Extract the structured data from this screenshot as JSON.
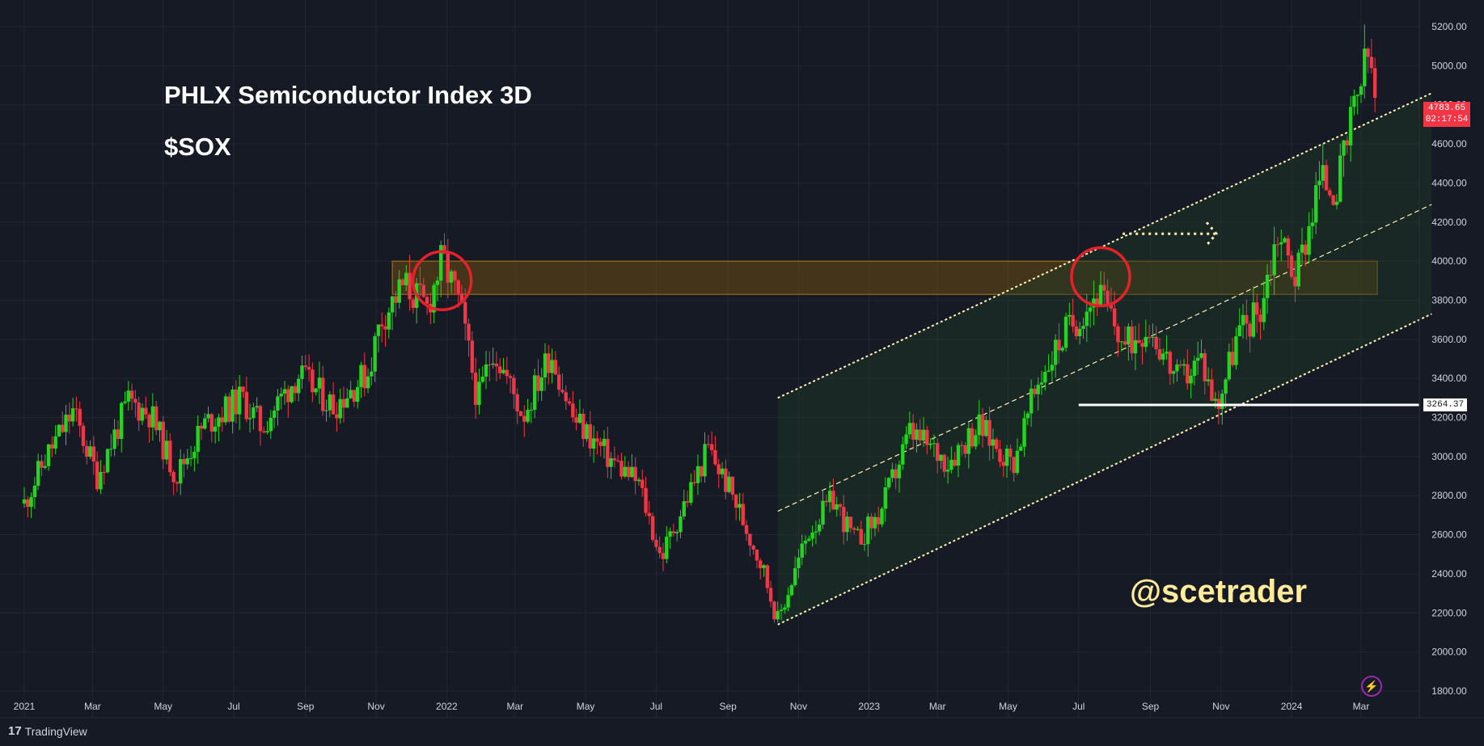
{
  "header": {
    "title": "PHLX Semiconductor Index 3D",
    "ticker": "$SOX",
    "watermark": "@scetrader"
  },
  "branding": {
    "logo_mark": "17",
    "logo_text": "TradingView"
  },
  "badges": {
    "last_price": "4783.65",
    "countdown": "02:17:54",
    "support_level": "3264.37"
  },
  "icons": {
    "flash": "lightning-icon"
  },
  "colors": {
    "background": "#161a25",
    "up": "#22d61f",
    "down": "#f23645",
    "grid": "#232733",
    "channel_line": "#fff2b3",
    "channel_fill": "#1f3a26",
    "resistance_zone": "#6b4a10",
    "circle": "#e8202a"
  },
  "chart_data": {
    "type": "candlestick",
    "title": "PHLX Semiconductor Index 3D",
    "ylim": [
      1700,
      5260
    ],
    "y_ticks": [
      1800,
      2000,
      2200,
      2400,
      2600,
      2800,
      3000,
      3200,
      3400,
      3600,
      3800,
      4000,
      4200,
      4400,
      4600,
      4800,
      5000,
      5200
    ],
    "y_tick_labels": [
      "1800.00",
      "2000.00",
      "2200.00",
      "2400.00",
      "2600.00",
      "2800.00",
      "3000.00",
      "3200.00",
      "3400.00",
      "3600.00",
      "3800.00",
      "4000.00",
      "4200.00",
      "4400.00",
      "4600.00",
      "4800.00",
      "5000.00",
      "5200.00"
    ],
    "x_tick_labels": [
      "2021",
      "Mar",
      "May",
      "Jul",
      "Sep",
      "Nov",
      "2022",
      "Mar",
      "May",
      "Jul",
      "Sep",
      "Nov",
      "2023",
      "Mar",
      "May",
      "Jul",
      "Sep",
      "Nov",
      "2024",
      "Mar"
    ],
    "x_tick_dates": [
      "2021-01-01",
      "2021-03-01",
      "2021-05-01",
      "2021-07-01",
      "2021-09-01",
      "2021-11-01",
      "2022-01-01",
      "2022-03-01",
      "2022-05-01",
      "2022-07-01",
      "2022-09-01",
      "2022-11-01",
      "2023-01-01",
      "2023-03-01",
      "2023-05-01",
      "2023-07-01",
      "2023-09-01",
      "2023-11-01",
      "2024-01-01",
      "2024-03-01"
    ],
    "price_path": [
      {
        "date": "2021-01-01",
        "close": 2760
      },
      {
        "date": "2021-01-20",
        "close": 3000
      },
      {
        "date": "2021-02-12",
        "close": 3230
      },
      {
        "date": "2021-03-05",
        "close": 2900
      },
      {
        "date": "2021-04-01",
        "close": 3280
      },
      {
        "date": "2021-04-20",
        "close": 3220
      },
      {
        "date": "2021-05-12",
        "close": 2900
      },
      {
        "date": "2021-06-05",
        "close": 3160
      },
      {
        "date": "2021-07-08",
        "close": 3300
      },
      {
        "date": "2021-07-25",
        "close": 3150
      },
      {
        "date": "2021-08-25",
        "close": 3420
      },
      {
        "date": "2021-09-25",
        "close": 3260
      },
      {
        "date": "2021-10-25",
        "close": 3430
      },
      {
        "date": "2021-11-05",
        "close": 3700
      },
      {
        "date": "2021-11-25",
        "close": 3880
      },
      {
        "date": "2021-12-15",
        "close": 3760
      },
      {
        "date": "2021-12-28",
        "close": 4010
      },
      {
        "date": "2022-01-12",
        "close": 3780
      },
      {
        "date": "2022-01-28",
        "close": 3280
      },
      {
        "date": "2022-02-10",
        "close": 3560
      },
      {
        "date": "2022-03-08",
        "close": 3210
      },
      {
        "date": "2022-04-01",
        "close": 3540
      },
      {
        "date": "2022-04-20",
        "close": 3200
      },
      {
        "date": "2022-05-20",
        "close": 3000
      },
      {
        "date": "2022-06-16",
        "close": 2860
      },
      {
        "date": "2022-07-05",
        "close": 2480
      },
      {
        "date": "2022-08-15",
        "close": 3040
      },
      {
        "date": "2022-09-05",
        "close": 2800
      },
      {
        "date": "2022-09-30",
        "close": 2450
      },
      {
        "date": "2022-10-14",
        "close": 2160
      },
      {
        "date": "2022-11-10",
        "close": 2620
      },
      {
        "date": "2022-12-01",
        "close": 2780
      },
      {
        "date": "2022-12-20",
        "close": 2560
      },
      {
        "date": "2023-01-10",
        "close": 2700
      },
      {
        "date": "2023-02-05",
        "close": 3120
      },
      {
        "date": "2023-03-10",
        "close": 2980
      },
      {
        "date": "2023-04-05",
        "close": 3160
      },
      {
        "date": "2023-05-05",
        "close": 2960
      },
      {
        "date": "2023-05-28",
        "close": 3400
      },
      {
        "date": "2023-06-20",
        "close": 3640
      },
      {
        "date": "2023-07-18",
        "close": 3840
      },
      {
        "date": "2023-08-10",
        "close": 3560
      },
      {
        "date": "2023-08-30",
        "close": 3680
      },
      {
        "date": "2023-09-25",
        "close": 3380
      },
      {
        "date": "2023-10-15",
        "close": 3500
      },
      {
        "date": "2023-10-28",
        "close": 3250
      },
      {
        "date": "2023-11-15",
        "close": 3620
      },
      {
        "date": "2023-12-05",
        "close": 3760
      },
      {
        "date": "2023-12-20",
        "close": 4150
      },
      {
        "date": "2024-01-05",
        "close": 3920
      },
      {
        "date": "2024-01-25",
        "close": 4420
      },
      {
        "date": "2024-02-10",
        "close": 4380
      },
      {
        "date": "2024-02-28",
        "close": 4880
      },
      {
        "date": "2024-03-08",
        "close": 5060
      },
      {
        "date": "2024-03-14",
        "close": 4784
      }
    ],
    "annotations": {
      "channel_upper": {
        "start": {
          "date": "2022-10-14",
          "price": 3300
        },
        "end": {
          "date": "2024-05-01",
          "price": 4860
        }
      },
      "channel_mid": {
        "start": {
          "date": "2022-10-14",
          "price": 2720
        },
        "end": {
          "date": "2024-05-01",
          "price": 4290
        }
      },
      "channel_lower": {
        "start": {
          "date": "2022-10-14",
          "price": 2140
        },
        "end": {
          "date": "2024-05-01",
          "price": 3730
        }
      },
      "resistance_zone": {
        "start_date": "2021-11-15",
        "end_date": "2024-03-15",
        "price_low": 3830,
        "price_high": 4000
      },
      "support_line": {
        "start_date": "2023-07-01",
        "price": 3264.37
      },
      "breakout_arrow": {
        "start_date": "2023-08-08",
        "end_date": "2023-10-28",
        "price": 4140
      },
      "circles": [
        {
          "date": "2021-12-28",
          "price": 3900
        },
        {
          "date": "2023-07-20",
          "price": 3920
        }
      ]
    },
    "last_price": 4783.65,
    "support_level": 3264.37,
    "grid": true
  }
}
